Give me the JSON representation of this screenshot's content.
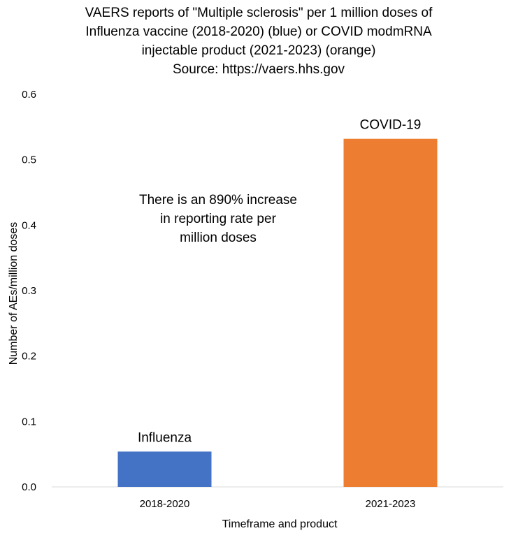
{
  "chart_data": {
    "type": "bar",
    "title_lines": [
      "VAERS reports of \"Multiple sclerosis\" per 1 million doses of",
      "Influenza vaccine (2018-2020) (blue) or COVID modmRNA",
      "injectable product (2021-2023) (orange)",
      "Source: https://vaers.hhs.gov"
    ],
    "categories": [
      "2018-2020",
      "2021-2023"
    ],
    "values": [
      0.054,
      0.532
    ],
    "bar_labels": [
      "Influenza",
      "COVID-19"
    ],
    "colors": [
      "#4472C4",
      "#ED7D31"
    ],
    "xlabel": "Timeframe and product",
    "ylabel": "Number of AEs/million doses",
    "ylim": [
      0,
      0.6
    ],
    "yticks": [
      "0.0",
      "0.1",
      "0.2",
      "0.3",
      "0.4",
      "0.5",
      "0.6"
    ],
    "grid": false,
    "annotation_lines": [
      "There is an 890% increase",
      "in reporting rate per",
      "million doses"
    ]
  }
}
